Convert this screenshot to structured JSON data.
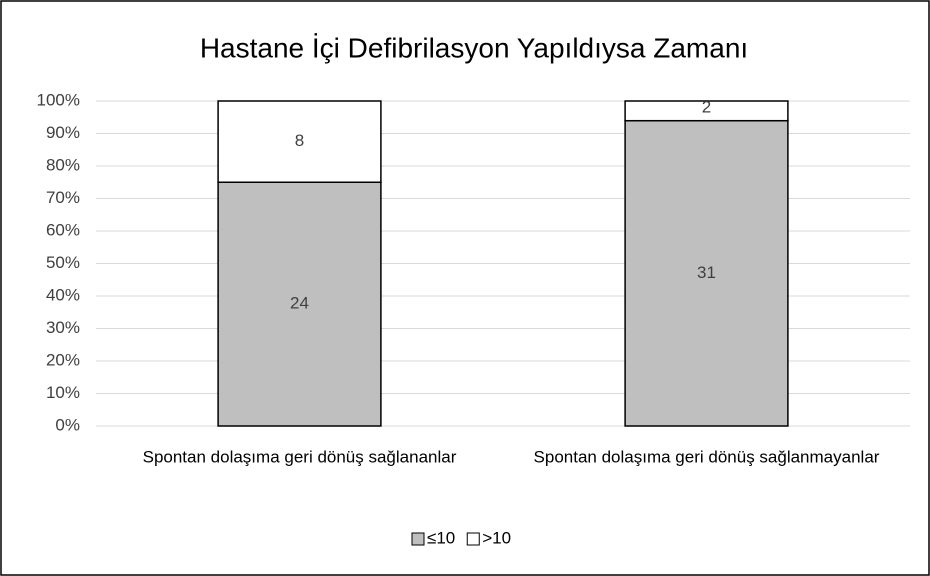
{
  "chart_data": {
    "type": "bar",
    "stacking": "percent",
    "title": "Hastane İçi Defibrilasyon Yapıldıysa Zamanı",
    "categories": [
      "Spontan dolaşıma geri dönüş sağlananlar",
      "Spontan dolaşıma geri dönüş sağlanmayanlar"
    ],
    "series": [
      {
        "name": "≤10",
        "color": "#bfbfbf",
        "values": [
          24,
          31
        ]
      },
      {
        "name": ">10",
        "color": "#ffffff",
        "values": [
          8,
          2
        ]
      }
    ],
    "ylim": [
      0,
      100
    ],
    "yticks": [
      {
        "value": 0,
        "label": "0%"
      },
      {
        "value": 10,
        "label": "10%"
      },
      {
        "value": 20,
        "label": "20%"
      },
      {
        "value": 30,
        "label": "30%"
      },
      {
        "value": 40,
        "label": "40%"
      },
      {
        "value": 50,
        "label": "50%"
      },
      {
        "value": 60,
        "label": "60%"
      },
      {
        "value": 70,
        "label": "70%"
      },
      {
        "value": 80,
        "label": "80%"
      },
      {
        "value": 90,
        "label": "90%"
      },
      {
        "value": 100,
        "label": "100%"
      }
    ],
    "grid": true,
    "legend": "bottom"
  }
}
